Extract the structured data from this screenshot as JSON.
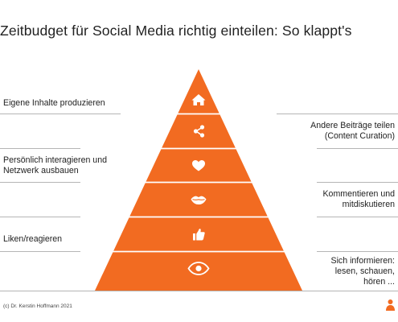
{
  "title": "Zeitbudget für Social Media richtig einteilen: So klappt's",
  "levels": [
    {
      "label": "Eigene Inhalte produzieren",
      "side": "left",
      "icon": "home-icon"
    },
    {
      "label": "Andere Beiträge teilen\n(Content Curation)",
      "side": "right",
      "icon": "share-icon"
    },
    {
      "label": "Persönlich interagieren und\nNetzwerk ausbauen",
      "side": "left",
      "icon": "heart-icon"
    },
    {
      "label": "Kommentieren und\nmitdiskutieren",
      "side": "right",
      "icon": "lips-icon"
    },
    {
      "label": "Liken/reagieren",
      "side": "left",
      "icon": "thumbs-up-icon"
    },
    {
      "label": "Sich informieren:\nlesen, schauen,\nhören ...",
      "side": "right",
      "icon": "eye-icon"
    }
  ],
  "credit": "(c) Dr. Kerstin Hoffmann 2021",
  "colors": {
    "pyramid": "#F26B21",
    "divider": "#ffffff",
    "rule": "#b5b5b5",
    "icon": "#ffffff"
  }
}
